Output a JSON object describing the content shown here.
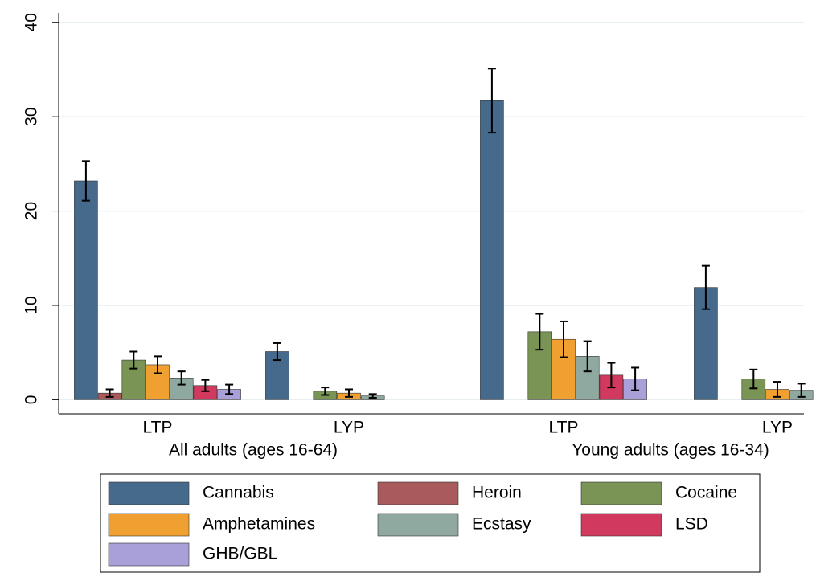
{
  "chart_data": {
    "type": "bar",
    "categories": [
      "LTP",
      "LYP",
      "LTP",
      "LYP"
    ],
    "groups": [
      "All adults (ages 16-64)",
      "Young adults (ages 16-34)"
    ],
    "series": [
      {
        "name": "Cannabis",
        "color": "#456a8c",
        "values": [
          23.2,
          5.1,
          31.7,
          11.9
        ],
        "errors": [
          2.1,
          0.9,
          3.4,
          2.3
        ]
      },
      {
        "name": "Heroin",
        "color": "#a85a5d",
        "values": [
          0.7,
          null,
          null,
          null
        ],
        "errors": [
          0.4,
          null,
          null,
          null
        ]
      },
      {
        "name": "Cocaine",
        "color": "#7a9456",
        "values": [
          4.2,
          0.9,
          7.2,
          2.2
        ],
        "errors": [
          0.9,
          0.4,
          1.9,
          1.0
        ]
      },
      {
        "name": "Amphetamines",
        "color": "#f0a030",
        "values": [
          3.7,
          0.7,
          6.4,
          1.1
        ],
        "errors": [
          0.9,
          0.4,
          1.9,
          0.8
        ]
      },
      {
        "name": "Ecstasy",
        "color": "#8fa8a0",
        "values": [
          2.3,
          0.4,
          4.6,
          1.0
        ],
        "errors": [
          0.7,
          0.2,
          1.6,
          0.7
        ]
      },
      {
        "name": "LSD",
        "color": "#d13a5e",
        "values": [
          1.5,
          null,
          2.6,
          null
        ],
        "errors": [
          0.6,
          null,
          1.3,
          null
        ]
      },
      {
        "name": "GHB/GBL",
        "color": "#a9a0da",
        "values": [
          1.1,
          null,
          2.2,
          null
        ],
        "errors": [
          0.5,
          null,
          1.2,
          null
        ]
      }
    ],
    "ylim": [
      -1.5,
      41
    ],
    "yticks": [
      0,
      10,
      20,
      30,
      40
    ],
    "grid": true,
    "legend": "bottom"
  }
}
